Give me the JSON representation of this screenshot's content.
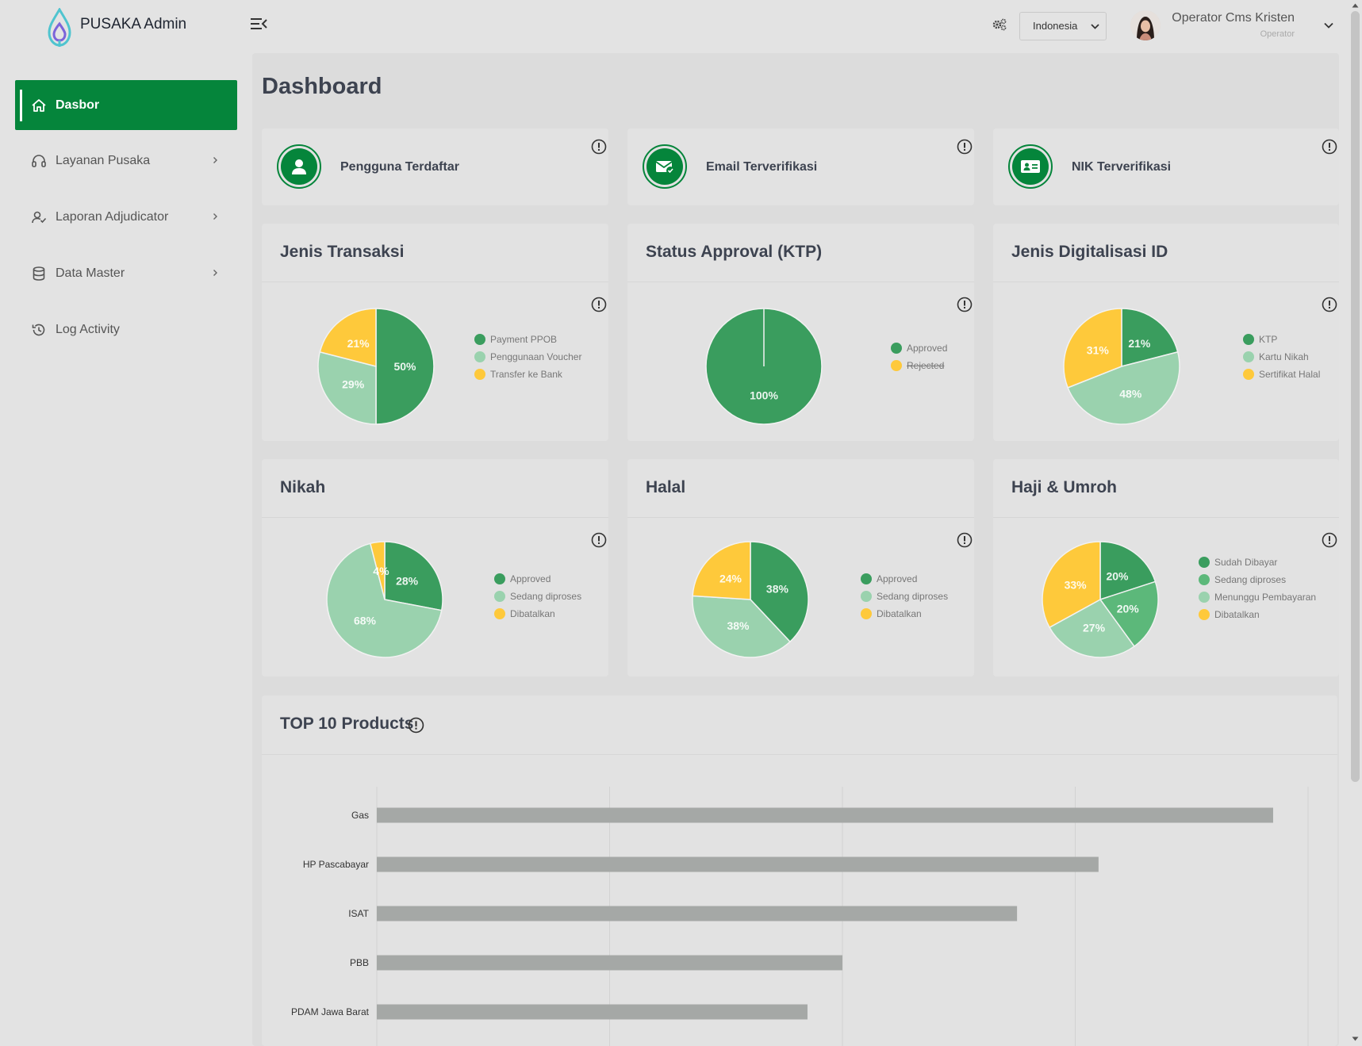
{
  "header": {
    "brand": "PUSAKA Admin",
    "language": "Indonesia",
    "user_name": "Operator Cms Kristen",
    "user_role": "Operator"
  },
  "sidebar": {
    "items": [
      {
        "label": "Dasbor",
        "icon": "home-icon",
        "active": true
      },
      {
        "label": "Layanan Pusaka",
        "icon": "headset-icon",
        "active": false
      },
      {
        "label": "Laporan Adjudicator",
        "icon": "user-check-icon",
        "active": false
      },
      {
        "label": "Data Master",
        "icon": "database-icon",
        "active": false
      },
      {
        "label": "Log Activity",
        "icon": "history-icon",
        "active": false
      }
    ]
  },
  "page_title": "Dashboard",
  "stats": [
    {
      "label": "Pengguna Terdaftar",
      "icon": "user-icon"
    },
    {
      "label": "Email Terverifikasi",
      "icon": "email-check-icon"
    },
    {
      "label": "NIK Terverifikasi",
      "icon": "id-card-icon"
    }
  ],
  "colors": {
    "dark_green": "#3a9d5e",
    "mid_green": "#5cb87a",
    "light_green": "#9ad2ae",
    "yellow": "#fec93b",
    "bar": "#a5a8a6",
    "active_nav": "#05853b"
  },
  "chart_data": [
    {
      "type": "pie",
      "title": "Jenis Transaksi",
      "labels": [
        "Payment PPOB",
        "Penggunaan Voucher",
        "Transfer ke Bank"
      ],
      "values": [
        50,
        29,
        21
      ],
      "value_labels": [
        "50%",
        "29%",
        "21%"
      ],
      "colors": [
        "#3a9d5e",
        "#9ad2ae",
        "#fec93b"
      ]
    },
    {
      "type": "pie",
      "title": "Status Approval (KTP)",
      "labels": [
        "Approved",
        "Rejected"
      ],
      "values": [
        100,
        0
      ],
      "value_labels": [
        "100%",
        ""
      ],
      "colors": [
        "#3a9d5e",
        "#fec93b"
      ],
      "hidden": [
        false,
        true
      ]
    },
    {
      "type": "pie",
      "title": "Jenis Digitalisasi ID",
      "labels": [
        "KTP",
        "Kartu Nikah",
        "Sertifikat Halal"
      ],
      "values": [
        21,
        48,
        31
      ],
      "value_labels": [
        "21%",
        "48%",
        "31%"
      ],
      "colors": [
        "#3a9d5e",
        "#9ad2ae",
        "#fec93b"
      ]
    },
    {
      "type": "pie",
      "title": "Nikah",
      "labels": [
        "Approved",
        "Sedang diproses",
        "Dibatalkan"
      ],
      "values": [
        28,
        68,
        4
      ],
      "value_labels": [
        "28%",
        "68%",
        "4%"
      ],
      "colors": [
        "#3a9d5e",
        "#9ad2ae",
        "#fec93b"
      ]
    },
    {
      "type": "pie",
      "title": "Halal",
      "labels": [
        "Approved",
        "Sedang diproses",
        "Dibatalkan"
      ],
      "values": [
        38,
        38,
        24
      ],
      "value_labels": [
        "38%",
        "38%",
        "24%"
      ],
      "colors": [
        "#3a9d5e",
        "#9ad2ae",
        "#fec93b"
      ]
    },
    {
      "type": "pie",
      "title": "Haji & Umroh",
      "labels": [
        "Sudah Dibayar",
        "Sedang diproses",
        "Menunggu Pembayaran",
        "Dibatalkan"
      ],
      "values": [
        20,
        20,
        27,
        33
      ],
      "value_labels": [
        "20%",
        "20%",
        "27%",
        "33%"
      ],
      "colors": [
        "#3a9d5e",
        "#5cb87a",
        "#9ad2ae",
        "#fec93b"
      ]
    },
    {
      "type": "bar",
      "orientation": "horizontal",
      "title": "TOP 10 Products",
      "categories": [
        "Gas",
        "HP Pascabayar",
        "ISAT",
        "PBB",
        "PDAM Jawa Barat"
      ],
      "values": [
        77,
        62,
        55,
        40,
        37
      ],
      "xlim": [
        0,
        80
      ],
      "grid": true
    }
  ]
}
